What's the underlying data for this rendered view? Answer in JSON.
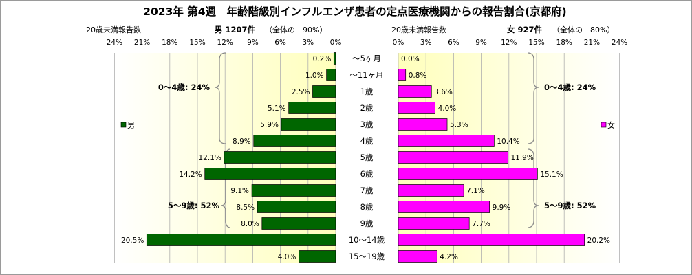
{
  "chart_data": {
    "type": "bar",
    "title": "2023年 第4週　年齢階級別インフルエンザ患者の定点医療機関からの報告割合(京都府)",
    "categories": [
      "～5ヶ月",
      "～11ヶ月",
      "1歳",
      "2歳",
      "3歳",
      "4歳",
      "5歳",
      "6歳",
      "7歳",
      "8歳",
      "9歳",
      "10～14歳",
      "15～19歳"
    ],
    "series": [
      {
        "name": "男",
        "values": [
          0.2,
          1.0,
          2.5,
          5.1,
          5.9,
          8.9,
          12.1,
          14.2,
          9.1,
          8.5,
          8.0,
          20.5,
          4.0
        ],
        "labels": [
          "0.2%",
          "1.0%",
          "2.5%",
          "5.1%",
          "5.9%",
          "8.9%",
          "12.1%",
          "14.2%",
          "9.1%",
          "8.5%",
          "8.0%",
          "20.5%",
          "4.0%"
        ],
        "color": "#006600"
      },
      {
        "name": "女",
        "values": [
          0.0,
          0.8,
          3.6,
          4.0,
          5.3,
          10.4,
          11.9,
          15.1,
          7.1,
          9.9,
          7.7,
          20.2,
          4.2
        ],
        "labels": [
          "0.0%",
          "0.8%",
          "3.6%",
          "4.0%",
          "5.3%",
          "10.4%",
          "11.9%",
          "15.1%",
          "7.1%",
          "9.9%",
          "7.7%",
          "20.2%",
          "4.2%"
        ],
        "color": "#ff00ff"
      }
    ],
    "axis_ticks": [
      "24%",
      "21%",
      "18%",
      "15%",
      "12%",
      "9%",
      "6%",
      "3%",
      "0%"
    ],
    "axis_ticks_right": [
      "0%",
      "3%",
      "6%",
      "9%",
      "12%",
      "15%",
      "18%",
      "21%",
      "24%"
    ],
    "xlim": [
      0,
      24
    ],
    "grid": true,
    "left_header": {
      "sub": "20歳未満報告数",
      "total": "男 1207件",
      "share": "（全体の　90%）"
    },
    "right_header": {
      "sub": "20歳未満報告数",
      "total": "女 927件",
      "share": "（全体の　80%）"
    },
    "group_labels_left": {
      "g04": "0～4歳: 24%",
      "g59": "5～9歳: 52%"
    },
    "group_labels_right": {
      "g04": "0～4歳: 24%",
      "g59": "5～9歳: 52%"
    },
    "legend": {
      "left": "男",
      "right": "女"
    },
    "colors": {
      "male": "#006600",
      "female": "#ff00ff",
      "plot_edge": "#ffffff",
      "plot_center": "#ffffbb",
      "grid": "#b0b0b0"
    }
  }
}
